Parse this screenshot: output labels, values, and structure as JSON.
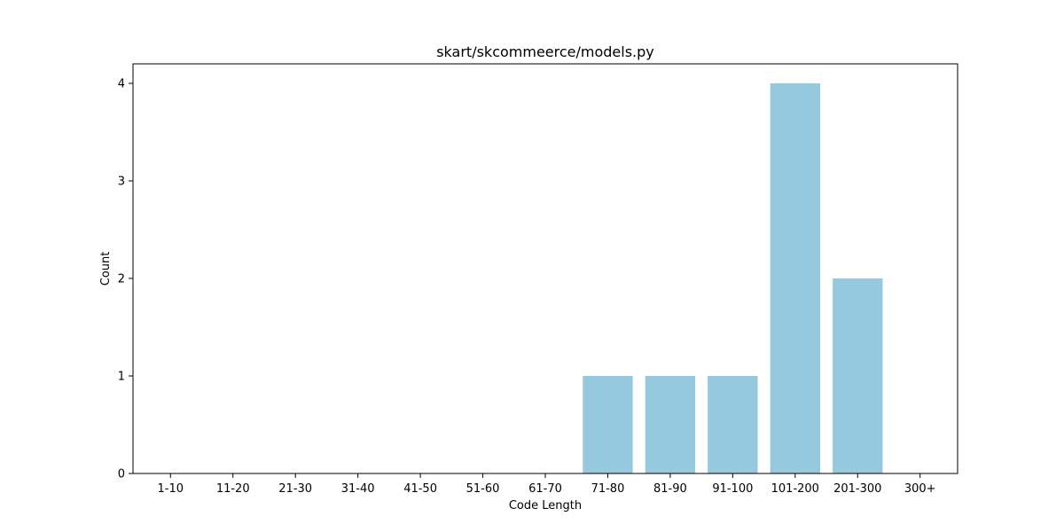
{
  "chart_data": {
    "type": "bar",
    "title": "skart/skcommeerce/models.py",
    "xlabel": "Code Length",
    "ylabel": "Count",
    "categories": [
      "1-10",
      "11-20",
      "21-30",
      "31-40",
      "41-50",
      "51-60",
      "61-70",
      "71-80",
      "81-90",
      "91-100",
      "101-200",
      "201-300",
      "300+"
    ],
    "values": [
      0,
      0,
      0,
      0,
      0,
      0,
      0,
      1,
      1,
      1,
      4,
      2,
      0
    ],
    "ylim": [
      0,
      4.2
    ],
    "yticks": [
      0,
      1,
      2,
      3,
      4
    ],
    "bar_color": "#96c9dd",
    "grid": false,
    "legend": "none"
  }
}
